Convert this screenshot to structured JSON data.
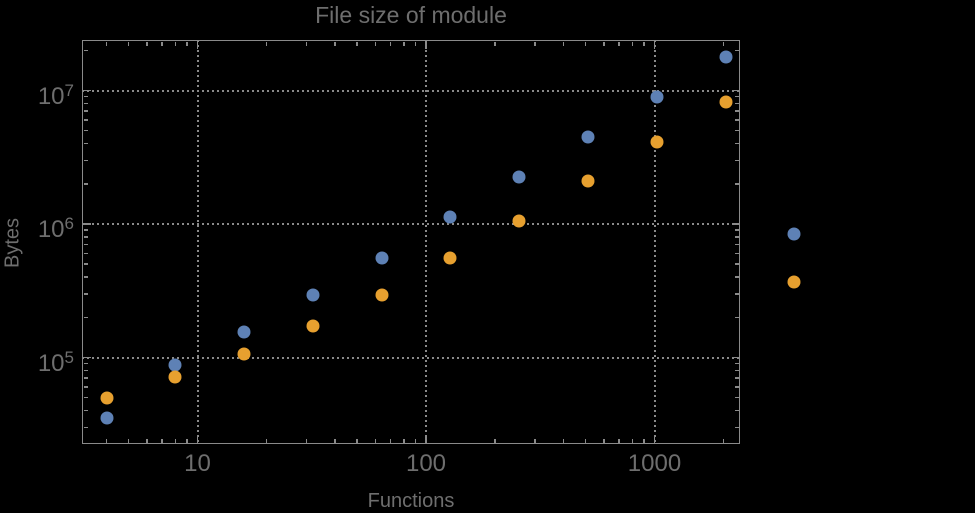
{
  "page": {
    "background": "#000000"
  },
  "chart_data": {
    "type": "scatter",
    "title": "File size of module",
    "xlabel": "Functions",
    "ylabel": "Bytes",
    "x_scale": "log",
    "y_scale": "log",
    "xlim": [
      3.2,
      2360
    ],
    "ylim": [
      22000,
      24000000
    ],
    "grid": "dotted",
    "legend": "none",
    "frame_color": "#8a8a8a",
    "grid_color": "#8a8a8a",
    "text_color": "#6e6e6e",
    "x_ticks": [
      10,
      100,
      1000
    ],
    "x_tick_labels": [
      "10",
      "100",
      "1000"
    ],
    "y_ticks": [
      100000,
      1000000,
      10000000
    ],
    "y_tick_labels": [
      {
        "base": "10",
        "exp": "5"
      },
      {
        "base": "10",
        "exp": "6"
      },
      {
        "base": "10",
        "exp": "7"
      }
    ],
    "x": [
      4,
      8,
      16,
      32,
      64,
      128,
      256,
      512,
      1024,
      2048,
      4096
    ],
    "series": [
      {
        "name": "blue",
        "color": "#5e81b5",
        "values": [
          35000,
          88000,
          155000,
          295000,
          560000,
          1120000,
          2240000,
          4460000,
          8900000,
          17800000,
          840000
        ]
      },
      {
        "name": "orange",
        "color": "#e7a02f",
        "values": [
          50000,
          72000,
          107000,
          173000,
          295000,
          553000,
          1060000,
          2110000,
          4140000,
          8150000,
          370000
        ]
      }
    ]
  }
}
